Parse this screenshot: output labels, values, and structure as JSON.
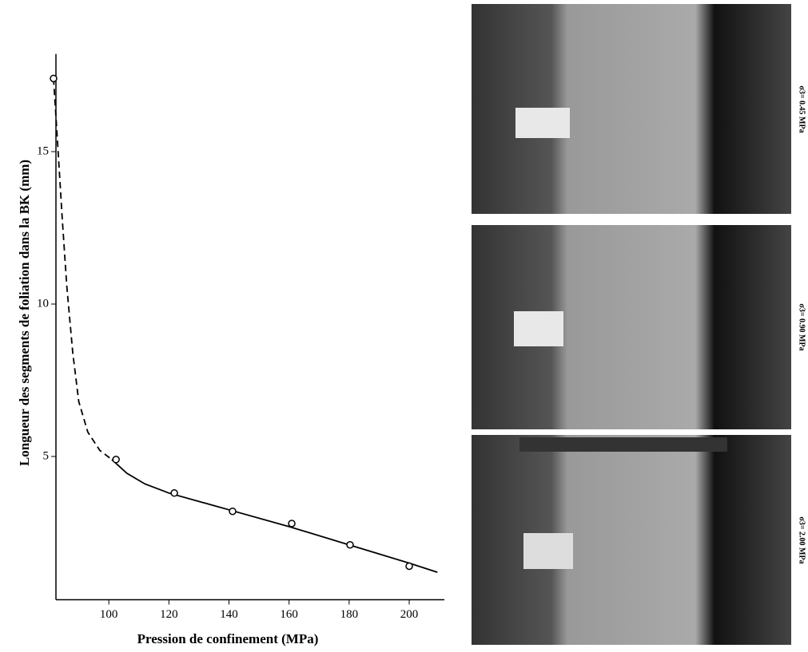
{
  "chart_data": {
    "type": "line",
    "xlabel": "Pression de confinement (MPa)",
    "ylabel": "Longueur des segments de foliation dans la BK   (mm)",
    "xlim": [
      82.4,
      211.7
    ],
    "ylim": [
      0.3,
      18.1
    ],
    "xticks": [
      100,
      120,
      140,
      160,
      180,
      200
    ],
    "yticks": [
      5,
      10,
      15
    ],
    "series": [
      {
        "linestyle": "dashed",
        "marker": "none",
        "color": "#000000",
        "x": [
          81.6,
          83,
          84.5,
          86,
          88,
          90,
          93,
          97,
          101
        ],
        "values": [
          17.4,
          15.2,
          12.8,
          10.6,
          8.4,
          6.8,
          5.8,
          5.2,
          4.9
        ]
      },
      {
        "linestyle": "solid",
        "marker": "none",
        "color": "#000000",
        "x": [
          101,
          106,
          112,
          120,
          140,
          160,
          180,
          200,
          209.4
        ],
        "values": [
          4.9,
          4.45,
          4.1,
          3.8,
          3.25,
          2.7,
          2.1,
          1.5,
          1.2
        ]
      },
      {
        "linestyle": "none",
        "marker": "circle",
        "color": "#000000",
        "x": [
          81.6,
          102.4,
          121.8,
          141.2,
          160.9,
          180.3,
          200
        ],
        "values": [
          17.4,
          4.9,
          3.8,
          3.2,
          2.8,
          2.1,
          1.4
        ]
      }
    ],
    "photo_labels": [
      "σ3= 0.45 MPa",
      "σ3= 0.90 MPa",
      "σ3= 2.00 MPa"
    ]
  }
}
